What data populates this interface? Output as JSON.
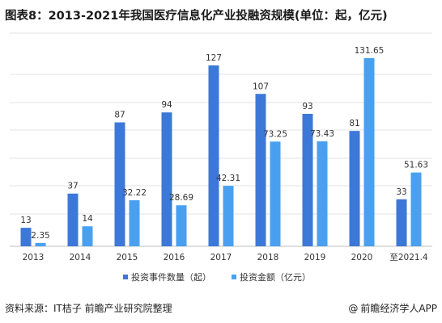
{
  "title": "图表8：2013-2021年我国医疗信息化产业投融资规模(单位：起，亿元)",
  "source": "资料来源：IT桔子 前瞻产业研究院整理",
  "brand": {
    "symbol": "@",
    "name": "前瞻经济学人APP"
  },
  "colors": {
    "dark_blue": "#3c78d8",
    "light_blue": "#4aa0f0"
  },
  "chart_data": {
    "type": "bar",
    "title": "图表8：2013-2021年我国医疗信息化产业投融资规模(单位：起，亿元)",
    "categories": [
      "2013",
      "2014",
      "2015",
      "2016",
      "2017",
      "2018",
      "2019",
      "2020",
      "至2021.4"
    ],
    "series": [
      {
        "name": "投资事件数量（起）",
        "values": [
          13,
          37,
          87,
          94,
          127,
          107,
          93,
          81,
          33
        ],
        "value_labels": [
          "13",
          "37",
          "87",
          "94",
          "127",
          "107",
          "93",
          "81",
          "33"
        ],
        "color": "#3c78d8"
      },
      {
        "name": "投资金额（亿元）",
        "values": [
          2.35,
          14,
          32.22,
          28.69,
          42.31,
          73.25,
          73.43,
          131.65,
          51.63
        ],
        "value_labels": [
          "2.35",
          "14",
          "32.22",
          "28.69",
          "42.31",
          "73.25",
          "73.43",
          "131.65",
          "51.63"
        ],
        "color": "#4aa0f0"
      }
    ],
    "ylim": [
      0,
      140
    ],
    "xlabel": "",
    "ylabel": "",
    "grid": true,
    "legend_position": "bottom"
  }
}
